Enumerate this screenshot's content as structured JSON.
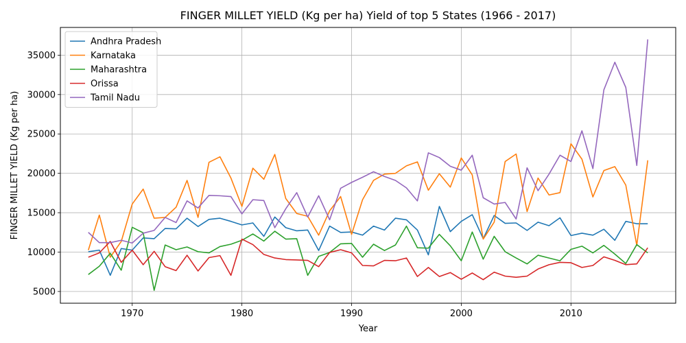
{
  "chart_data": {
    "type": "line",
    "title": "FINGER MILLET YIELD (Kg per ha) Yield of top 5 States (1966 - 2017)",
    "xlabel": "Year",
    "ylabel": "FINGER MILLET YIELD (Kg per ha)",
    "xlim": [
      1963.45,
      2019.55
    ],
    "ylim": [
      3510,
      38520
    ],
    "xticks": [
      1970,
      1980,
      1990,
      2000,
      2010
    ],
    "yticks": [
      5000,
      10000,
      15000,
      20000,
      25000,
      30000,
      35000
    ],
    "grid": true,
    "legend_position": "upper-left",
    "x": [
      1966,
      1967,
      1968,
      1969,
      1970,
      1971,
      1972,
      1973,
      1974,
      1975,
      1976,
      1977,
      1978,
      1979,
      1980,
      1981,
      1982,
      1983,
      1984,
      1985,
      1986,
      1987,
      1988,
      1989,
      1990,
      1991,
      1992,
      1993,
      1994,
      1995,
      1996,
      1997,
      1998,
      1999,
      2000,
      2001,
      2002,
      2003,
      2004,
      2005,
      2006,
      2007,
      2008,
      2009,
      2010,
      2011,
      2012,
      2013,
      2014,
      2015,
      2016,
      2017
    ],
    "series": [
      {
        "name": "Andhra Pradesh",
        "color": "#1f77b4",
        "values": [
          10050,
          10250,
          7050,
          10450,
          10250,
          11800,
          11700,
          13000,
          12950,
          14300,
          13250,
          14150,
          14300,
          13900,
          13450,
          13700,
          12000,
          14450,
          13100,
          12700,
          12800,
          10200,
          13300,
          12500,
          12550,
          12150,
          13300,
          12800,
          14300,
          14100,
          12800,
          9650,
          15800,
          12600,
          13900,
          14750,
          11700,
          14650,
          13650,
          13700,
          12750,
          13800,
          13350,
          14350,
          12100,
          12400,
          12150,
          12900,
          11500,
          13900,
          13600,
          13600
        ]
      },
      {
        "name": "Karnataka",
        "color": "#ff7f0e",
        "values": [
          10250,
          14700,
          9350,
          11350,
          16100,
          18000,
          14300,
          14400,
          15700,
          19100,
          14400,
          21400,
          22100,
          19400,
          15800,
          20650,
          19250,
          22400,
          16800,
          14900,
          14550,
          12150,
          15250,
          17050,
          12250,
          16650,
          19100,
          19900,
          20000,
          20950,
          21450,
          17850,
          19950,
          18250,
          21950,
          19800,
          11650,
          13800,
          21500,
          22450,
          15150,
          19400,
          17250,
          17550,
          23750,
          21800,
          17000,
          20350,
          20850,
          18500,
          10850,
          21650
        ]
      },
      {
        "name": "Maharashtra",
        "color": "#2ca02c",
        "values": [
          7150,
          8200,
          9850,
          7700,
          13150,
          12450,
          5150,
          10900,
          10300,
          10650,
          10050,
          9900,
          10700,
          11000,
          11500,
          12300,
          11400,
          12650,
          11650,
          11700,
          7050,
          9450,
          9950,
          11050,
          11100,
          9350,
          11000,
          10200,
          10900,
          13300,
          10550,
          10500,
          12250,
          10800,
          8900,
          12550,
          9100,
          12000,
          10050,
          9250,
          8500,
          9600,
          9250,
          8900,
          10350,
          10750,
          9900,
          10850,
          9750,
          8550,
          10950,
          9900
        ]
      },
      {
        "name": "Orissa",
        "color": "#d62728",
        "values": [
          9350,
          9900,
          11350,
          8700,
          10250,
          8400,
          10100,
          8150,
          7650,
          9600,
          7600,
          9300,
          9550,
          7050,
          11650,
          10950,
          9700,
          9250,
          9050,
          9000,
          8950,
          8150,
          9950,
          10300,
          9900,
          8300,
          8250,
          8950,
          8900,
          9250,
          6900,
          8050,
          6900,
          7400,
          6550,
          7350,
          6500,
          7450,
          6950,
          6800,
          6950,
          7850,
          8400,
          8700,
          8650,
          8050,
          8300,
          9400,
          8950,
          8400,
          8500,
          10550
        ]
      },
      {
        "name": "Tamil Nadu",
        "color": "#9467bd",
        "values": [
          12500,
          11200,
          11200,
          11500,
          11150,
          12400,
          12750,
          14400,
          13750,
          16500,
          15600,
          17200,
          17150,
          17050,
          14850,
          16650,
          16550,
          13100,
          15500,
          17550,
          14450,
          17150,
          14100,
          18100,
          18850,
          19500,
          20200,
          19600,
          19100,
          18150,
          16500,
          22600,
          22000,
          20900,
          20400,
          22300,
          16900,
          16100,
          16300,
          14200,
          20700,
          17800,
          19900,
          22300,
          21500,
          25400,
          20600,
          30600,
          34100,
          30900,
          21000,
          37000
        ]
      }
    ]
  }
}
